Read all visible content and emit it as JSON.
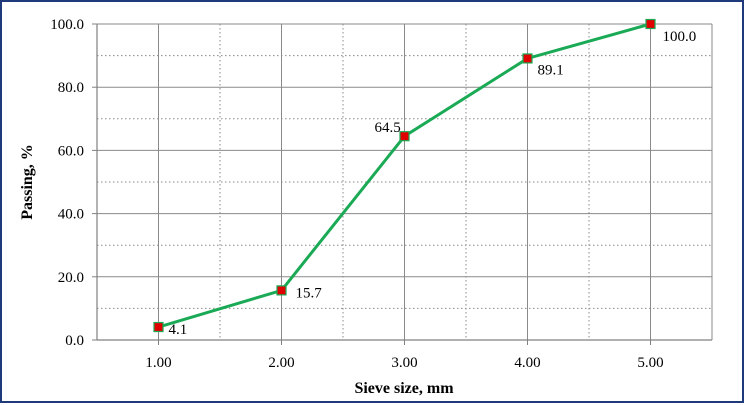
{
  "chart_data": {
    "type": "line",
    "title": "",
    "xlabel": "Sieve size, mm",
    "ylabel": "Passing, %",
    "x": [
      1,
      2,
      3,
      4,
      5
    ],
    "x_tick_labels": [
      "1.00",
      "2.00",
      "3.00",
      "4.00",
      "5.00"
    ],
    "xlim": [
      0.5,
      5.5
    ],
    "ylim": [
      0,
      100
    ],
    "y_ticks": [
      0,
      20,
      40,
      60,
      80,
      100
    ],
    "y_tick_labels": [
      "0.0",
      "20.0",
      "40.0",
      "60.0",
      "80.0",
      "100.0"
    ],
    "series": [
      {
        "values": [
          4.1,
          15.7,
          64.5,
          89.1,
          100.0
        ],
        "data_labels": [
          "4.1",
          "15.7",
          "64.5",
          "89.1",
          "100.0"
        ],
        "line_color": "#1aaa55",
        "marker": "square",
        "marker_color": "#e00000",
        "marker_edge_color": "#1aaa55"
      }
    ],
    "grid": true,
    "legend": "none"
  }
}
